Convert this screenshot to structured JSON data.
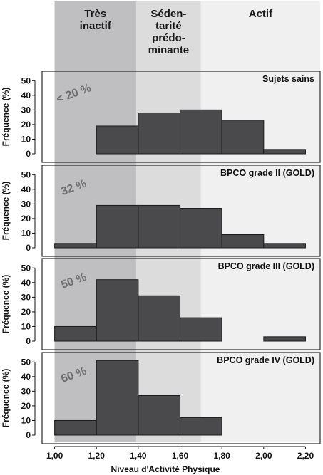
{
  "zones": [
    {
      "lines": [
        "Très",
        "inactif"
      ],
      "from": 1.0,
      "to": 1.39,
      "color": "#bfbfc1"
    },
    {
      "lines": [
        "Séden-",
        "tarité",
        "prédo-",
        "minante"
      ],
      "from": 1.39,
      "to": 1.7,
      "color": "#dcdcdd"
    },
    {
      "lines": [
        "Actif"
      ],
      "from": 1.7,
      "to": 2.27,
      "color": "#f0f0f0"
    }
  ],
  "chart_data": [
    {
      "type": "bar",
      "title": "Sujets sains",
      "annotation": "< 20 %",
      "bins": [
        [
          1.0,
          1.2
        ],
        [
          1.2,
          1.4
        ],
        [
          1.4,
          1.6
        ],
        [
          1.6,
          1.8
        ],
        [
          1.8,
          2.0
        ],
        [
          2.0,
          2.2
        ]
      ],
      "values": [
        0,
        19,
        28,
        30,
        23,
        3
      ],
      "ylabel": "Fréquence (%)",
      "ylim": [
        0,
        55
      ]
    },
    {
      "type": "bar",
      "title": "BPCO grade II (GOLD)",
      "annotation": "32 %",
      "bins": [
        [
          1.0,
          1.2
        ],
        [
          1.2,
          1.4
        ],
        [
          1.4,
          1.6
        ],
        [
          1.6,
          1.8
        ],
        [
          1.8,
          2.0
        ],
        [
          2.0,
          2.2
        ]
      ],
      "values": [
        3,
        29,
        29,
        27,
        9,
        3
      ],
      "ylabel": "Fréquence (%)",
      "ylim": [
        0,
        55
      ]
    },
    {
      "type": "bar",
      "title": "BPCO grade III (GOLD)",
      "annotation": "50 %",
      "bins": [
        [
          1.0,
          1.2
        ],
        [
          1.2,
          1.4
        ],
        [
          1.4,
          1.6
        ],
        [
          1.6,
          1.8
        ],
        [
          1.8,
          2.0
        ],
        [
          2.0,
          2.2
        ]
      ],
      "values": [
        10,
        42,
        31,
        16,
        0,
        3
      ],
      "ylabel": "Fréquence (%)",
      "ylim": [
        0,
        55
      ]
    },
    {
      "type": "bar",
      "title": "BPCO grade IV (GOLD)",
      "annotation": "60 %",
      "bins": [
        [
          1.0,
          1.2
        ],
        [
          1.2,
          1.4
        ],
        [
          1.4,
          1.6
        ],
        [
          1.6,
          1.8
        ],
        [
          1.8,
          2.0
        ],
        [
          2.0,
          2.2
        ]
      ],
      "values": [
        10,
        51,
        27,
        12,
        0,
        0
      ],
      "ylabel": "Fréquence (%)",
      "ylim": [
        0,
        55
      ]
    }
  ],
  "y_ticks": [
    0,
    10,
    20,
    30,
    40,
    50
  ],
  "x_ticks": [
    "1,00",
    "1,20",
    "1,40",
    "1,60",
    "1,80",
    "2,00",
    "2,20"
  ],
  "x_tick_values": [
    1.0,
    1.2,
    1.4,
    1.6,
    1.8,
    2.0,
    2.2
  ],
  "xlim": [
    0.94,
    2.27
  ],
  "xlabel": "Niveau d'Activité Physique",
  "colors": {
    "bar": "#4a4a4c",
    "bar_edge": "#1a1a1a",
    "frame": "#2a2a2a",
    "annotation": "#6d6d6d"
  }
}
